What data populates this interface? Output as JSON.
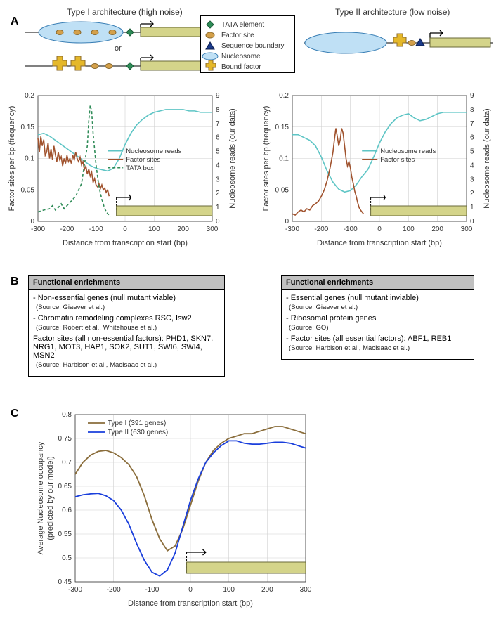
{
  "panelA": {
    "label": "A",
    "left_title": "Type I architecture (high noise)",
    "right_title": "Type II architecture (low noise)",
    "or_text": "or",
    "legend": {
      "items": [
        {
          "label": "TATA element",
          "kind": "diamond",
          "color": "#2e8b57"
        },
        {
          "label": "Factor site",
          "kind": "oval",
          "color": "#c88a2e"
        },
        {
          "label": "Sequence boundary",
          "kind": "triangle",
          "color": "#1a3a8a"
        },
        {
          "label": "Nucleosome",
          "kind": "nucleo",
          "color": "#9dcff0"
        },
        {
          "label": "Bound factor",
          "kind": "cross",
          "color": "#e5b82a"
        }
      ]
    },
    "chart_left": {
      "xlabel": "Distance from transcription start (bp)",
      "ylabel_left": "Factor sites per bp (frequency)",
      "ylabel_right": "Nucleosome reads (our data)",
      "xlim": [
        -300,
        300
      ],
      "xtick_step": 100,
      "ylim_left": [
        0,
        0.2
      ],
      "ytick_left_step": 0.05,
      "ylim_right": [
        0,
        9
      ],
      "ytick_right_step": 1,
      "grid_color": "#d0d0d0",
      "legend": [
        {
          "label": "Nucleosome reads",
          "color": "#5ec5c5",
          "dash": false
        },
        {
          "label": "Factor sites",
          "color": "#a0522d",
          "dash": false
        },
        {
          "label": "TATA box",
          "color": "#2e8b57",
          "dash": true
        }
      ],
      "series_nucleo": {
        "color": "#5ec5c5",
        "points": [
          [
            -300,
            6.2
          ],
          [
            -280,
            6.3
          ],
          [
            -260,
            6.1
          ],
          [
            -240,
            5.8
          ],
          [
            -220,
            5.5
          ],
          [
            -200,
            5.2
          ],
          [
            -180,
            4.9
          ],
          [
            -160,
            4.6
          ],
          [
            -140,
            4.3
          ],
          [
            -120,
            4.0
          ],
          [
            -100,
            3.8
          ],
          [
            -80,
            3.7
          ],
          [
            -60,
            3.6
          ],
          [
            -40,
            3.8
          ],
          [
            -20,
            4.5
          ],
          [
            0,
            5.5
          ],
          [
            20,
            6.3
          ],
          [
            40,
            6.9
          ],
          [
            60,
            7.3
          ],
          [
            80,
            7.6
          ],
          [
            100,
            7.8
          ],
          [
            120,
            7.9
          ],
          [
            140,
            8.0
          ],
          [
            160,
            8.0
          ],
          [
            180,
            8.0
          ],
          [
            200,
            8.0
          ],
          [
            220,
            7.9
          ],
          [
            240,
            7.9
          ],
          [
            260,
            7.8
          ],
          [
            280,
            7.8
          ],
          [
            300,
            7.8
          ]
        ]
      },
      "series_factor": {
        "color": "#a0522d",
        "points": [
          [
            -300,
            0.132
          ],
          [
            -295,
            0.11
          ],
          [
            -290,
            0.135
          ],
          [
            -285,
            0.12
          ],
          [
            -280,
            0.13
          ],
          [
            -275,
            0.105
          ],
          [
            -270,
            0.11
          ],
          [
            -265,
            0.125
          ],
          [
            -260,
            0.1
          ],
          [
            -255,
            0.115
          ],
          [
            -250,
            0.098
          ],
          [
            -245,
            0.12
          ],
          [
            -240,
            0.106
          ],
          [
            -235,
            0.095
          ],
          [
            -230,
            0.11
          ],
          [
            -225,
            0.098
          ],
          [
            -220,
            0.103
          ],
          [
            -215,
            0.088
          ],
          [
            -210,
            0.1
          ],
          [
            -205,
            0.092
          ],
          [
            -200,
            0.105
          ],
          [
            -195,
            0.095
          ],
          [
            -190,
            0.1
          ],
          [
            -185,
            0.092
          ],
          [
            -180,
            0.105
          ],
          [
            -175,
            0.098
          ],
          [
            -170,
            0.11
          ],
          [
            -165,
            0.1
          ],
          [
            -160,
            0.095
          ],
          [
            -155,
            0.102
          ],
          [
            -150,
            0.09
          ],
          [
            -145,
            0.095
          ],
          [
            -140,
            0.082
          ],
          [
            -135,
            0.088
          ],
          [
            -130,
            0.075
          ],
          [
            -125,
            0.083
          ],
          [
            -120,
            0.072
          ],
          [
            -115,
            0.078
          ],
          [
            -110,
            0.062
          ],
          [
            -105,
            0.068
          ],
          [
            -100,
            0.058
          ],
          [
            -95,
            0.055
          ],
          [
            -90,
            0.06
          ],
          [
            -85,
            0.052
          ],
          [
            -80,
            0.058
          ],
          [
            -75,
            0.05
          ],
          [
            -70,
            0.053
          ],
          [
            -65,
            0.046
          ],
          [
            -60,
            0.05
          ],
          [
            -55,
            0.04
          ]
        ]
      },
      "series_tata": {
        "color": "#2e8b57",
        "dash": true,
        "points": [
          [
            -300,
            0.015
          ],
          [
            -280,
            0.018
          ],
          [
            -260,
            0.02
          ],
          [
            -250,
            0.025
          ],
          [
            -240,
            0.018
          ],
          [
            -230,
            0.022
          ],
          [
            -220,
            0.028
          ],
          [
            -210,
            0.02
          ],
          [
            -200,
            0.025
          ],
          [
            -190,
            0.03
          ],
          [
            -180,
            0.035
          ],
          [
            -170,
            0.04
          ],
          [
            -160,
            0.05
          ],
          [
            -150,
            0.06
          ],
          [
            -140,
            0.09
          ],
          [
            -130,
            0.12
          ],
          [
            -125,
            0.16
          ],
          [
            -120,
            0.185
          ],
          [
            -115,
            0.175
          ],
          [
            -110,
            0.14
          ],
          [
            -100,
            0.09
          ],
          [
            -90,
            0.055
          ],
          [
            -80,
            0.035
          ],
          [
            -70,
            0.02
          ],
          [
            -60,
            0.012
          ],
          [
            -50,
            0.008
          ]
        ]
      },
      "gene_bar_color": "#d4d48a"
    },
    "chart_right": {
      "xlabel": "Distance from transcription start (bp)",
      "ylabel_left": "Factor sites per bp (frequency)",
      "ylabel_right": "Nucleosome reads (our data)",
      "xlim": [
        -300,
        300
      ],
      "xtick_step": 100,
      "ylim_left": [
        0,
        0.2
      ],
      "ytick_left_step": 0.05,
      "ylim_right": [
        0,
        9
      ],
      "ytick_right_step": 1,
      "grid_color": "#d0d0d0",
      "legend": [
        {
          "label": "Nucleosome reads",
          "color": "#5ec5c5",
          "dash": false
        },
        {
          "label": "Factor sites",
          "color": "#a0522d",
          "dash": false
        }
      ],
      "series_nucleo": {
        "color": "#5ec5c5",
        "points": [
          [
            -300,
            6.2
          ],
          [
            -280,
            6.2
          ],
          [
            -260,
            6.0
          ],
          [
            -240,
            5.8
          ],
          [
            -220,
            5.4
          ],
          [
            -200,
            4.6
          ],
          [
            -180,
            3.6
          ],
          [
            -160,
            2.8
          ],
          [
            -140,
            2.3
          ],
          [
            -120,
            2.1
          ],
          [
            -100,
            2.2
          ],
          [
            -80,
            2.6
          ],
          [
            -60,
            3.2
          ],
          [
            -40,
            3.7
          ],
          [
            -20,
            4.6
          ],
          [
            0,
            5.6
          ],
          [
            20,
            6.4
          ],
          [
            40,
            7.0
          ],
          [
            60,
            7.4
          ],
          [
            80,
            7.6
          ],
          [
            100,
            7.7
          ],
          [
            120,
            7.4
          ],
          [
            140,
            7.2
          ],
          [
            160,
            7.3
          ],
          [
            180,
            7.5
          ],
          [
            200,
            7.7
          ],
          [
            220,
            7.8
          ],
          [
            240,
            7.8
          ],
          [
            260,
            7.8
          ],
          [
            280,
            7.8
          ],
          [
            300,
            7.8
          ]
        ]
      },
      "series_factor": {
        "color": "#a0522d",
        "points": [
          [
            -300,
            0.012
          ],
          [
            -290,
            0.01
          ],
          [
            -280,
            0.015
          ],
          [
            -270,
            0.018
          ],
          [
            -260,
            0.015
          ],
          [
            -250,
            0.02
          ],
          [
            -240,
            0.018
          ],
          [
            -230,
            0.025
          ],
          [
            -220,
            0.028
          ],
          [
            -210,
            0.032
          ],
          [
            -200,
            0.04
          ],
          [
            -190,
            0.05
          ],
          [
            -180,
            0.065
          ],
          [
            -170,
            0.085
          ],
          [
            -160,
            0.11
          ],
          [
            -155,
            0.13
          ],
          [
            -150,
            0.148
          ],
          [
            -145,
            0.135
          ],
          [
            -140,
            0.12
          ],
          [
            -135,
            0.13
          ],
          [
            -130,
            0.148
          ],
          [
            -125,
            0.14
          ],
          [
            -120,
            0.12
          ],
          [
            -115,
            0.1
          ],
          [
            -110,
            0.088
          ],
          [
            -105,
            0.095
          ],
          [
            -100,
            0.085
          ],
          [
            -95,
            0.07
          ],
          [
            -90,
            0.06
          ],
          [
            -85,
            0.048
          ],
          [
            -80,
            0.04
          ],
          [
            -75,
            0.03
          ],
          [
            -70,
            0.022
          ],
          [
            -65,
            0.018
          ],
          [
            -60,
            0.015
          ],
          [
            -55,
            0.012
          ]
        ]
      },
      "gene_bar_color": "#d4d48a"
    }
  },
  "panelB": {
    "label": "B",
    "left": {
      "title": "Functional enrichments",
      "items": [
        {
          "text": "- Non-essential genes (null mutant viable)",
          "source": "(Source: Giaever et al.)"
        },
        {
          "text": "- Chromatin remodeling complexes RSC, Isw2",
          "source": "(Source: Robert et al., Whitehouse et al.)"
        },
        {
          "text": " Factor sites (all non-essential factors): PHD1, SKN7, NRG1, MOT3, HAP1, SOK2, SUT1, SWI6, SWI4, MSN2",
          "source": "(Source: Harbison et al., MacIsaac et al.)"
        }
      ]
    },
    "right": {
      "title": "Functional enrichments",
      "items": [
        {
          "text": "- Essential genes (null mutant inviable)",
          "source": "(Source: Giaever et al.)"
        },
        {
          "text": "- Ribosomal protein genes",
          "source": "(Source: GO)"
        },
        {
          "text": "- Factor sites (all essential factors): ABF1, REB1",
          "source": "(Source: Harbison et al., MacIsaac et al.)"
        }
      ]
    }
  },
  "panelC": {
    "label": "C",
    "chart": {
      "xlabel": "Distance from transcription start (bp)",
      "ylabel": "Average Nucleosome occupancy\n(predicted by our model)",
      "xlim": [
        -300,
        300
      ],
      "xtick_step": 100,
      "ylim": [
        0.45,
        0.8
      ],
      "ytick_step": 0.05,
      "grid_color": "#d0d0d0",
      "legend": [
        {
          "label": "Type I (391 genes)",
          "color": "#8a6d3b"
        },
        {
          "label": "Type II (630 genes)",
          "color": "#1a3fdc"
        }
      ],
      "series_type1": {
        "color": "#8a6d3b",
        "points": [
          [
            -300,
            0.675
          ],
          [
            -280,
            0.7
          ],
          [
            -260,
            0.715
          ],
          [
            -240,
            0.723
          ],
          [
            -220,
            0.725
          ],
          [
            -200,
            0.72
          ],
          [
            -180,
            0.71
          ],
          [
            -160,
            0.695
          ],
          [
            -140,
            0.67
          ],
          [
            -120,
            0.63
          ],
          [
            -100,
            0.58
          ],
          [
            -80,
            0.54
          ],
          [
            -60,
            0.515
          ],
          [
            -40,
            0.525
          ],
          [
            -20,
            0.56
          ],
          [
            0,
            0.61
          ],
          [
            20,
            0.66
          ],
          [
            40,
            0.7
          ],
          [
            60,
            0.725
          ],
          [
            80,
            0.74
          ],
          [
            100,
            0.75
          ],
          [
            120,
            0.755
          ],
          [
            140,
            0.76
          ],
          [
            160,
            0.76
          ],
          [
            180,
            0.765
          ],
          [
            200,
            0.77
          ],
          [
            220,
            0.775
          ],
          [
            240,
            0.775
          ],
          [
            260,
            0.77
          ],
          [
            280,
            0.765
          ],
          [
            300,
            0.76
          ]
        ]
      },
      "series_type2": {
        "color": "#1a3fdc",
        "points": [
          [
            -300,
            0.628
          ],
          [
            -280,
            0.632
          ],
          [
            -260,
            0.634
          ],
          [
            -240,
            0.635
          ],
          [
            -220,
            0.63
          ],
          [
            -200,
            0.62
          ],
          [
            -180,
            0.6
          ],
          [
            -160,
            0.57
          ],
          [
            -140,
            0.53
          ],
          [
            -120,
            0.495
          ],
          [
            -100,
            0.47
          ],
          [
            -80,
            0.462
          ],
          [
            -60,
            0.475
          ],
          [
            -40,
            0.51
          ],
          [
            -20,
            0.565
          ],
          [
            0,
            0.62
          ],
          [
            20,
            0.665
          ],
          [
            40,
            0.7
          ],
          [
            60,
            0.72
          ],
          [
            80,
            0.735
          ],
          [
            100,
            0.745
          ],
          [
            120,
            0.745
          ],
          [
            140,
            0.74
          ],
          [
            160,
            0.738
          ],
          [
            180,
            0.738
          ],
          [
            200,
            0.74
          ],
          [
            220,
            0.742
          ],
          [
            240,
            0.742
          ],
          [
            260,
            0.74
          ],
          [
            280,
            0.735
          ],
          [
            300,
            0.73
          ]
        ]
      },
      "gene_bar_color": "#d4d48a"
    }
  }
}
